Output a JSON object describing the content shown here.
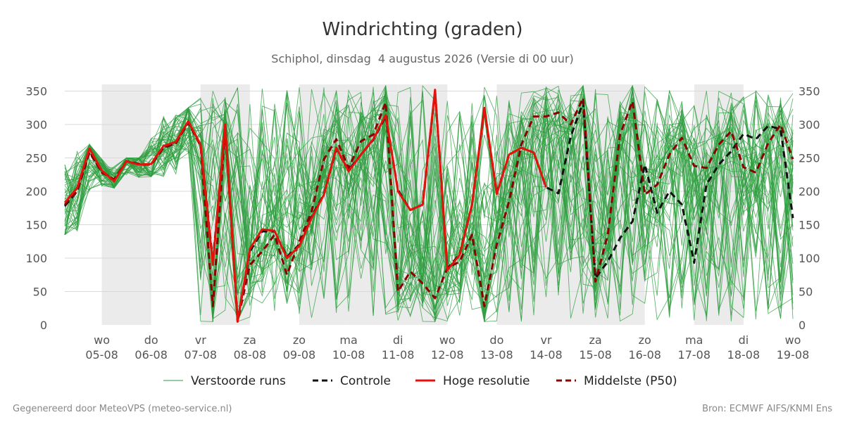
{
  "chart_data": {
    "type": "line",
    "title": "Windrichting (graden)",
    "subtitle": "Schiphol, dinsdag  4 augustus 2026 (Versie di 00 uur)",
    "ylim": [
      0,
      360
    ],
    "y_ticks": [
      0,
      50,
      100,
      150,
      200,
      250,
      300,
      350
    ],
    "x_range": [
      "2026-08-04 06:00",
      "2026-08-19 00:00"
    ],
    "x_ticks": [
      {
        "date": "2026-08-05",
        "day": "wo",
        "label": "05-08"
      },
      {
        "date": "2026-08-06",
        "day": "do",
        "label": "06-08"
      },
      {
        "date": "2026-08-07",
        "day": "vr",
        "label": "07-08"
      },
      {
        "date": "2026-08-08",
        "day": "za",
        "label": "08-08"
      },
      {
        "date": "2026-08-09",
        "day": "zo",
        "label": "09-08"
      },
      {
        "date": "2026-08-10",
        "day": "ma",
        "label": "10-08"
      },
      {
        "date": "2026-08-11",
        "day": "di",
        "label": "11-08"
      },
      {
        "date": "2026-08-12",
        "day": "wo",
        "label": "12-08"
      },
      {
        "date": "2026-08-13",
        "day": "do",
        "label": "13-08"
      },
      {
        "date": "2026-08-14",
        "day": "vr",
        "label": "14-08"
      },
      {
        "date": "2026-08-15",
        "day": "za",
        "label": "15-08"
      },
      {
        "date": "2026-08-16",
        "day": "zo",
        "label": "16-08"
      },
      {
        "date": "2026-08-17",
        "day": "ma",
        "label": "17-08"
      },
      {
        "date": "2026-08-18",
        "day": "di",
        "label": "18-08"
      },
      {
        "date": "2026-08-19",
        "day": "wo",
        "label": "19-08"
      }
    ],
    "shaded_days": [
      "2026-08-05",
      "2026-08-07",
      "2026-08-09",
      "2026-08-10",
      "2026-08-11",
      "2026-08-13",
      "2026-08-14",
      "2026-08-15",
      "2026-08-17"
    ],
    "grid": true,
    "legend_position": "bottom",
    "series": [
      {
        "name": "Hoge resolutie",
        "color": "#e3120b",
        "style": "solid",
        "points": [
          [
            "2026-08-04 06:00",
            183
          ],
          [
            "2026-08-04 12:00",
            205
          ],
          [
            "2026-08-04 18:00",
            264
          ],
          [
            "2026-08-05 00:00",
            231
          ],
          [
            "2026-08-05 06:00",
            215
          ],
          [
            "2026-08-05 12:00",
            245
          ],
          [
            "2026-08-05 18:00",
            240
          ],
          [
            "2026-08-06 00:00",
            241
          ],
          [
            "2026-08-06 06:00",
            268
          ],
          [
            "2026-08-06 12:00",
            274
          ],
          [
            "2026-08-06 18:00",
            305
          ],
          [
            "2026-08-07 00:00",
            270
          ],
          [
            "2026-08-07 06:00",
            90
          ],
          [
            "2026-08-07 12:00",
            300
          ],
          [
            "2026-08-07 18:00",
            5
          ],
          [
            "2026-08-08 00:00",
            114
          ],
          [
            "2026-08-08 06:00",
            143
          ],
          [
            "2026-08-08 12:00",
            141
          ],
          [
            "2026-08-08 18:00",
            100
          ],
          [
            "2026-08-09 00:00",
            118
          ],
          [
            "2026-08-09 06:00",
            160
          ],
          [
            "2026-08-09 12:00",
            195
          ],
          [
            "2026-08-09 18:00",
            265
          ],
          [
            "2026-08-10 00:00",
            230
          ],
          [
            "2026-08-10 06:00",
            255
          ],
          [
            "2026-08-10 12:00",
            278
          ],
          [
            "2026-08-10 18:00",
            314
          ],
          [
            "2026-08-11 00:00",
            200
          ],
          [
            "2026-08-11 06:00",
            172
          ],
          [
            "2026-08-11 12:00",
            180
          ],
          [
            "2026-08-11 18:00",
            352
          ],
          [
            "2026-08-12 00:00",
            82
          ],
          [
            "2026-08-12 06:00",
            105
          ],
          [
            "2026-08-12 12:00",
            180
          ],
          [
            "2026-08-12 18:00",
            325
          ],
          [
            "2026-08-13 00:00",
            196
          ],
          [
            "2026-08-13 06:00",
            255
          ],
          [
            "2026-08-13 12:00",
            265
          ],
          [
            "2026-08-13 18:00",
            258
          ],
          [
            "2026-08-14 00:00",
            206
          ]
        ]
      },
      {
        "name": "Controle",
        "color": "#111111",
        "style": "dashed",
        "points": [
          [
            "2026-08-04 06:00",
            178
          ],
          [
            "2026-08-04 12:00",
            200
          ],
          [
            "2026-08-04 18:00",
            258
          ],
          [
            "2026-08-05 00:00",
            230
          ],
          [
            "2026-08-05 06:00",
            217
          ],
          [
            "2026-08-05 12:00",
            245
          ],
          [
            "2026-08-05 18:00",
            241
          ],
          [
            "2026-08-06 00:00",
            240
          ],
          [
            "2026-08-06 06:00",
            265
          ],
          [
            "2026-08-06 12:00",
            272
          ],
          [
            "2026-08-06 18:00",
            303
          ],
          [
            "2026-08-07 00:00",
            270
          ],
          [
            "2026-08-07 06:00",
            95
          ],
          [
            "2026-08-07 12:00",
            298
          ],
          [
            "2026-08-07 18:00",
            6
          ],
          [
            "2026-08-08 00:00",
            110
          ],
          [
            "2026-08-08 06:00",
            140
          ],
          [
            "2026-08-08 12:00",
            140
          ],
          [
            "2026-08-08 18:00",
            102
          ],
          [
            "2026-08-09 00:00",
            120
          ],
          [
            "2026-08-09 06:00",
            162
          ],
          [
            "2026-08-09 12:00",
            196
          ],
          [
            "2026-08-09 18:00",
            263
          ],
          [
            "2026-08-10 00:00",
            232
          ],
          [
            "2026-08-10 06:00",
            255
          ],
          [
            "2026-08-10 12:00",
            277
          ],
          [
            "2026-08-10 18:00",
            312
          ],
          [
            "2026-08-11 00:00",
            202
          ],
          [
            "2026-08-11 06:00",
            172
          ],
          [
            "2026-08-11 12:00",
            180
          ],
          [
            "2026-08-11 18:00",
            350
          ],
          [
            "2026-08-12 00:00",
            84
          ],
          [
            "2026-08-12 06:00",
            106
          ],
          [
            "2026-08-12 12:00",
            180
          ],
          [
            "2026-08-12 18:00",
            323
          ],
          [
            "2026-08-13 00:00",
            197
          ],
          [
            "2026-08-13 06:00",
            255
          ],
          [
            "2026-08-13 12:00",
            265
          ],
          [
            "2026-08-13 18:00",
            258
          ],
          [
            "2026-08-14 00:00",
            206
          ],
          [
            "2026-08-14 06:00",
            197
          ],
          [
            "2026-08-14 12:00",
            282
          ],
          [
            "2026-08-14 18:00",
            333
          ],
          [
            "2026-08-15 00:00",
            70
          ],
          [
            "2026-08-15 06:00",
            95
          ],
          [
            "2026-08-15 12:00",
            130
          ],
          [
            "2026-08-15 18:00",
            155
          ],
          [
            "2026-08-16 00:00",
            240
          ],
          [
            "2026-08-16 06:00",
            168
          ],
          [
            "2026-08-16 12:00",
            200
          ],
          [
            "2026-08-16 18:00",
            180
          ],
          [
            "2026-08-17 00:00",
            93
          ],
          [
            "2026-08-17 06:00",
            210
          ],
          [
            "2026-08-17 12:00",
            240
          ],
          [
            "2026-08-17 18:00",
            260
          ],
          [
            "2026-08-18 00:00",
            286
          ],
          [
            "2026-08-18 06:00",
            278
          ],
          [
            "2026-08-18 12:00",
            298
          ],
          [
            "2026-08-18 18:00",
            293
          ],
          [
            "2026-08-19 00:00",
            160
          ]
        ]
      },
      {
        "name": "Middelste (P50)",
        "color": "#8b0000",
        "style": "dashed",
        "points": [
          [
            "2026-08-04 06:00",
            180
          ],
          [
            "2026-08-04 12:00",
            200
          ],
          [
            "2026-08-04 18:00",
            260
          ],
          [
            "2026-08-05 00:00",
            228
          ],
          [
            "2026-08-05 06:00",
            218
          ],
          [
            "2026-08-05 12:00",
            245
          ],
          [
            "2026-08-05 18:00",
            240
          ],
          [
            "2026-08-06 00:00",
            240
          ],
          [
            "2026-08-06 06:00",
            266
          ],
          [
            "2026-08-06 12:00",
            272
          ],
          [
            "2026-08-06 18:00",
            303
          ],
          [
            "2026-08-07 00:00",
            268
          ],
          [
            "2026-08-07 06:00",
            28
          ],
          [
            "2026-08-07 12:00",
            295
          ],
          [
            "2026-08-07 18:00",
            5
          ],
          [
            "2026-08-08 00:00",
            90
          ],
          [
            "2026-08-08 06:00",
            110
          ],
          [
            "2026-08-08 12:00",
            135
          ],
          [
            "2026-08-08 18:00",
            75
          ],
          [
            "2026-08-09 00:00",
            125
          ],
          [
            "2026-08-09 06:00",
            170
          ],
          [
            "2026-08-09 12:00",
            248
          ],
          [
            "2026-08-09 18:00",
            278
          ],
          [
            "2026-08-10 00:00",
            235
          ],
          [
            "2026-08-10 06:00",
            275
          ],
          [
            "2026-08-10 12:00",
            285
          ],
          [
            "2026-08-10 18:00",
            333
          ],
          [
            "2026-08-11 00:00",
            50
          ],
          [
            "2026-08-11 06:00",
            80
          ],
          [
            "2026-08-11 12:00",
            62
          ],
          [
            "2026-08-11 18:00",
            40
          ],
          [
            "2026-08-12 00:00",
            85
          ],
          [
            "2026-08-12 06:00",
            95
          ],
          [
            "2026-08-12 12:00",
            135
          ],
          [
            "2026-08-12 18:00",
            28
          ],
          [
            "2026-08-13 00:00",
            120
          ],
          [
            "2026-08-13 06:00",
            185
          ],
          [
            "2026-08-13 12:00",
            270
          ],
          [
            "2026-08-13 18:00",
            312
          ],
          [
            "2026-08-14 00:00",
            312
          ],
          [
            "2026-08-14 06:00",
            318
          ],
          [
            "2026-08-14 12:00",
            300
          ],
          [
            "2026-08-14 18:00",
            340
          ],
          [
            "2026-08-15 00:00",
            65
          ],
          [
            "2026-08-15 06:00",
            135
          ],
          [
            "2026-08-15 12:00",
            285
          ],
          [
            "2026-08-15 18:00",
            335
          ],
          [
            "2026-08-16 00:00",
            195
          ],
          [
            "2026-08-16 06:00",
            210
          ],
          [
            "2026-08-16 12:00",
            255
          ],
          [
            "2026-08-16 18:00",
            280
          ],
          [
            "2026-08-17 00:00",
            238
          ],
          [
            "2026-08-17 06:00",
            235
          ],
          [
            "2026-08-17 12:00",
            270
          ],
          [
            "2026-08-17 18:00",
            290
          ],
          [
            "2026-08-18 00:00",
            236
          ],
          [
            "2026-08-18 06:00",
            228
          ],
          [
            "2026-08-18 12:00",
            272
          ],
          [
            "2026-08-18 18:00",
            300
          ],
          [
            "2026-08-19 00:00",
            248
          ]
        ]
      },
      {
        "name": "Verstoorde runs",
        "color": "#2e9e3f",
        "style": "thin",
        "member_count": 50,
        "spread_by_day": [
          {
            "date": "2026-08-04",
            "min": 135,
            "max": 270
          },
          {
            "date": "2026-08-05",
            "min": 205,
            "max": 250
          },
          {
            "date": "2026-08-06",
            "min": 222,
            "max": 325
          },
          {
            "date": "2026-08-07",
            "min": 5,
            "max": 358
          },
          {
            "date": "2026-08-08",
            "min": 5,
            "max": 358
          },
          {
            "date": "2026-08-09",
            "min": 5,
            "max": 358
          },
          {
            "date": "2026-08-10",
            "min": 5,
            "max": 358
          },
          {
            "date": "2026-08-11",
            "min": 5,
            "max": 358
          },
          {
            "date": "2026-08-12",
            "min": 5,
            "max": 358
          },
          {
            "date": "2026-08-13",
            "min": 5,
            "max": 358
          },
          {
            "date": "2026-08-14",
            "min": 5,
            "max": 358
          },
          {
            "date": "2026-08-15",
            "min": 5,
            "max": 358
          },
          {
            "date": "2026-08-16",
            "min": 5,
            "max": 358
          },
          {
            "date": "2026-08-17",
            "min": 5,
            "max": 358
          },
          {
            "date": "2026-08-18",
            "min": 5,
            "max": 358
          }
        ]
      }
    ]
  },
  "legend": {
    "ensemble": "Verstoorde runs",
    "control": "Controle",
    "highres": "Hoge resolutie",
    "median": "Middelste (P50)"
  },
  "footer": {
    "left": "Gegenereerd door MeteoVPS (meteo-service.nl)",
    "right": "Bron: ECMWF AIFS/KNMI Ens"
  }
}
